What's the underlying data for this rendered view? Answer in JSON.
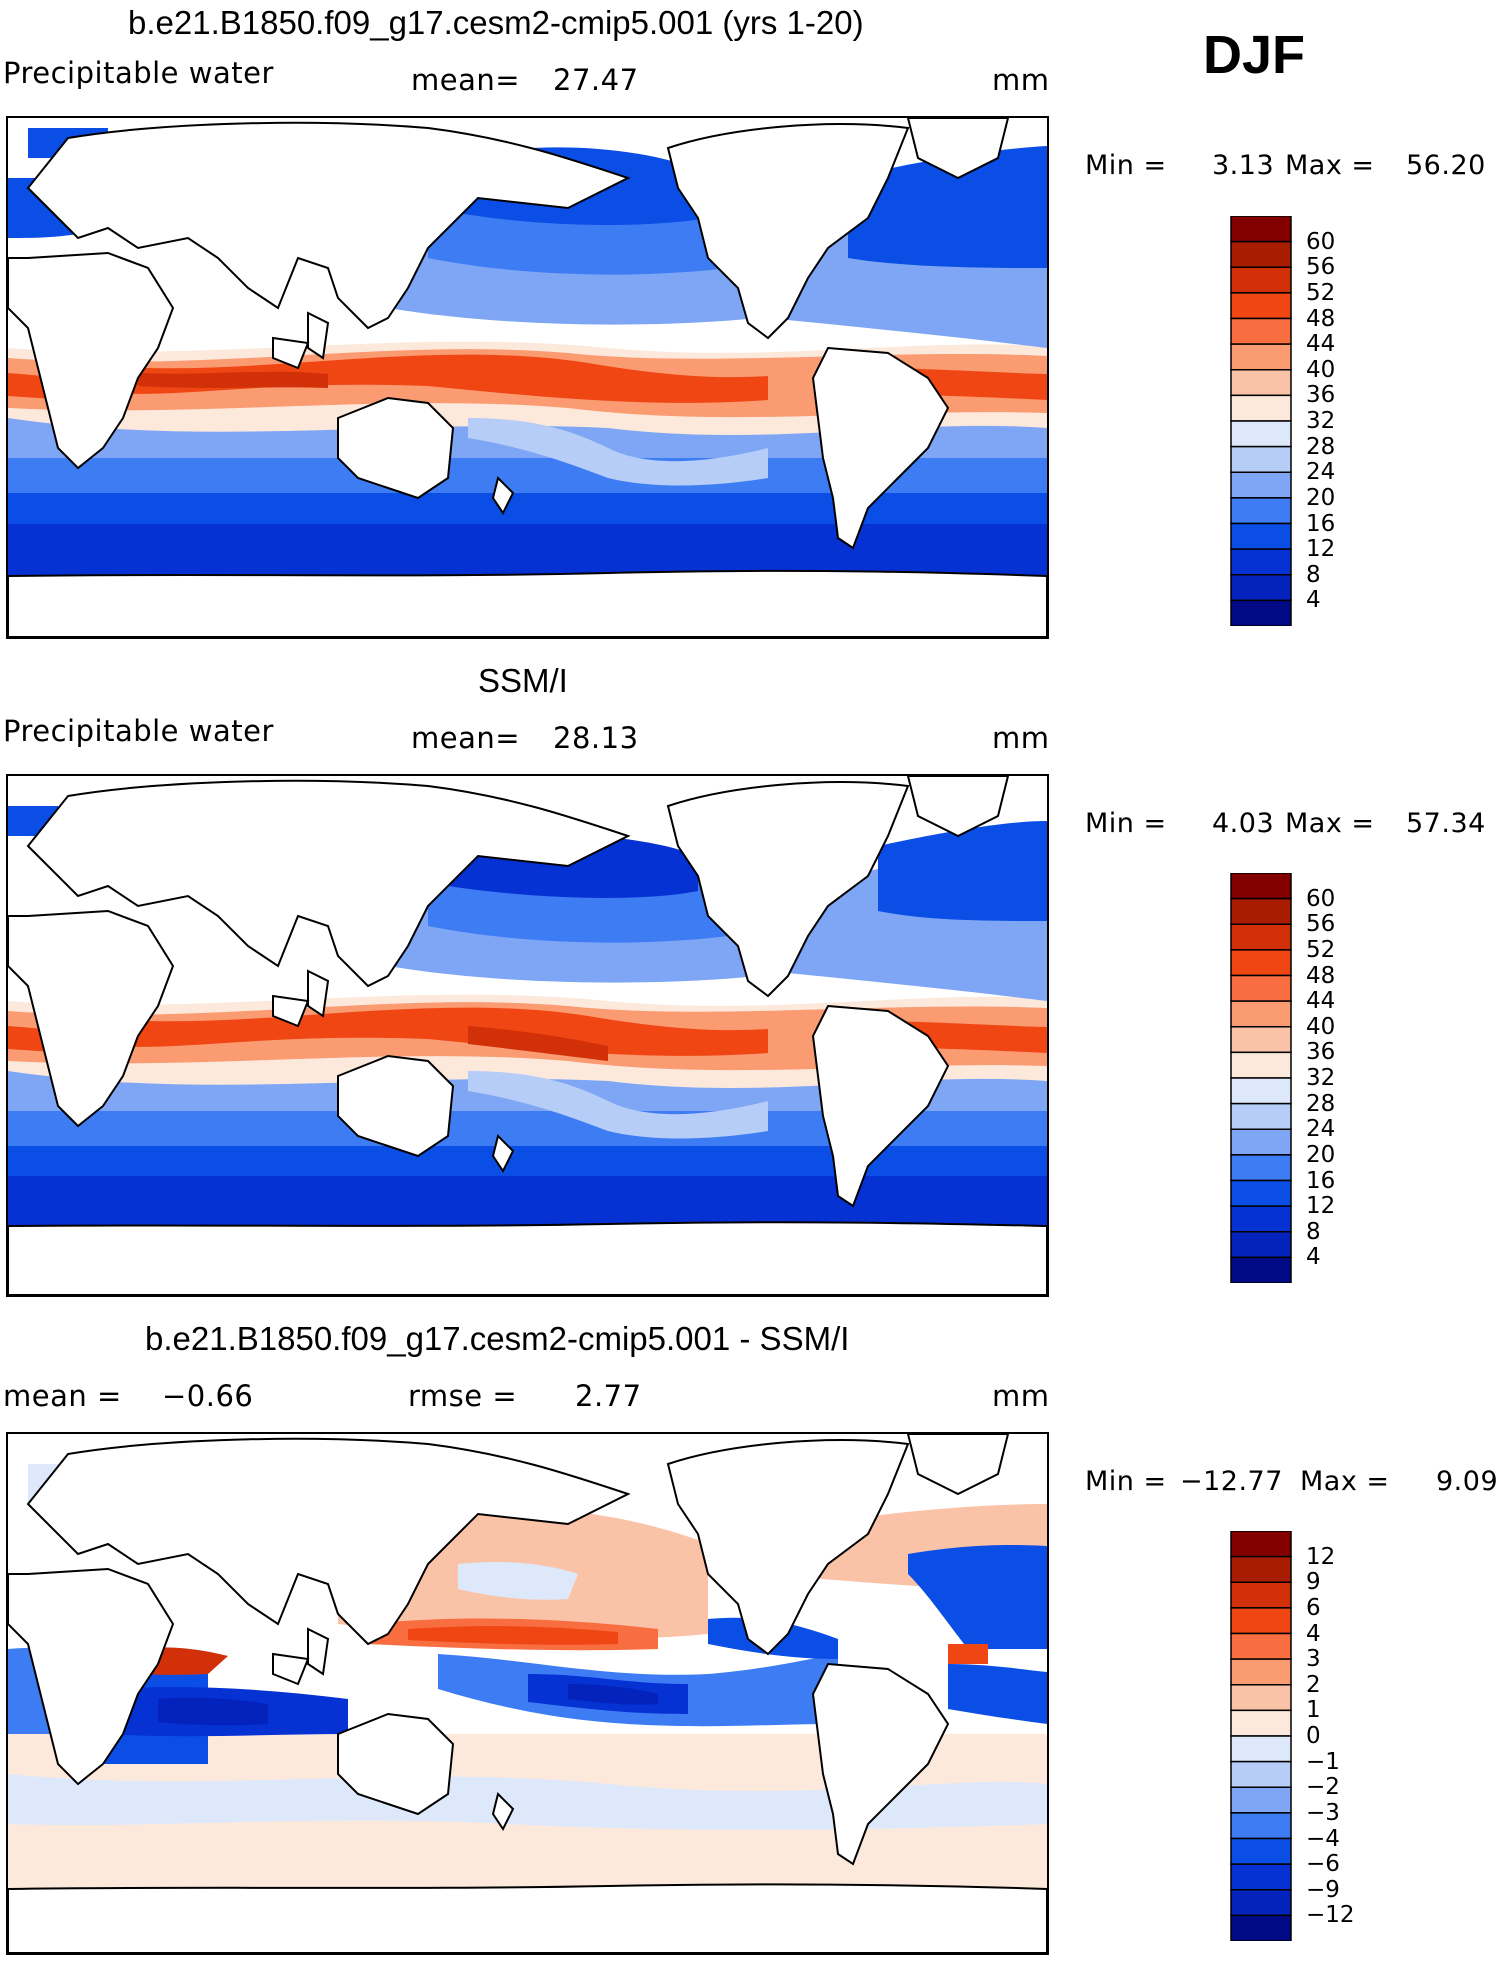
{
  "season": "DJF",
  "colors": {
    "abs": [
      "#010a84",
      "#0422bc",
      "#0632d4",
      "#0a4ee6",
      "#3e7cf4",
      "#7ea6f5",
      "#b5cdf7",
      "#dde9fb",
      "#fde9dc",
      "#fac3a7",
      "#fa9b72",
      "#f86e41",
      "#f04614",
      "#d23008",
      "#a81c02",
      "#830000"
    ],
    "diff": [
      "#010a84",
      "#0422bc",
      "#0632d4",
      "#0a4ee6",
      "#3e7cf4",
      "#7ea6f5",
      "#b5cdf7",
      "#dde9fb",
      "#fde9dc",
      "#fac3a7",
      "#fa9b72",
      "#f86e41",
      "#f04614",
      "#d23008",
      "#a81c02",
      "#830000"
    ]
  },
  "panels": [
    {
      "title": "b.e21.B1850.f09_g17.cesm2-cmip5.001 (yrs 1-20)",
      "left_label": "Precipitable water",
      "mid_label": "mean=",
      "mid_value": "27.47",
      "units": "mm",
      "min_label": "Min =",
      "min_value": "3.13",
      "max_label": "Max =",
      "max_value": "56.20",
      "ticks": [
        "60",
        "56",
        "52",
        "48",
        "44",
        "40",
        "36",
        "32",
        "28",
        "24",
        "20",
        "16",
        "12",
        "8",
        "4"
      ],
      "palette": "abs"
    },
    {
      "title": "SSM/I",
      "left_label": "Precipitable water",
      "mid_label": "mean=",
      "mid_value": "28.13",
      "units": "mm",
      "min_label": "Min =",
      "min_value": "4.03",
      "max_label": "Max =",
      "max_value": "57.34",
      "ticks": [
        "60",
        "56",
        "52",
        "48",
        "44",
        "40",
        "36",
        "32",
        "28",
        "24",
        "20",
        "16",
        "12",
        "8",
        "4"
      ],
      "palette": "abs"
    },
    {
      "title": "b.e21.B1850.f09_g17.cesm2-cmip5.001 - SSM/I",
      "left_label": "mean =",
      "left_value": "−0.66",
      "mid_label": "rmse =",
      "mid_value": "2.77",
      "units": "mm",
      "min_label": "Min =",
      "min_value": "−12.77",
      "max_label": "Max =",
      "max_value": "9.09",
      "ticks": [
        "12",
        "9",
        "6",
        "4",
        "3",
        "2",
        "1",
        "0",
        "−1",
        "−2",
        "−3",
        "−4",
        "−6",
        "−9",
        "−12"
      ],
      "palette": "diff"
    }
  ]
}
